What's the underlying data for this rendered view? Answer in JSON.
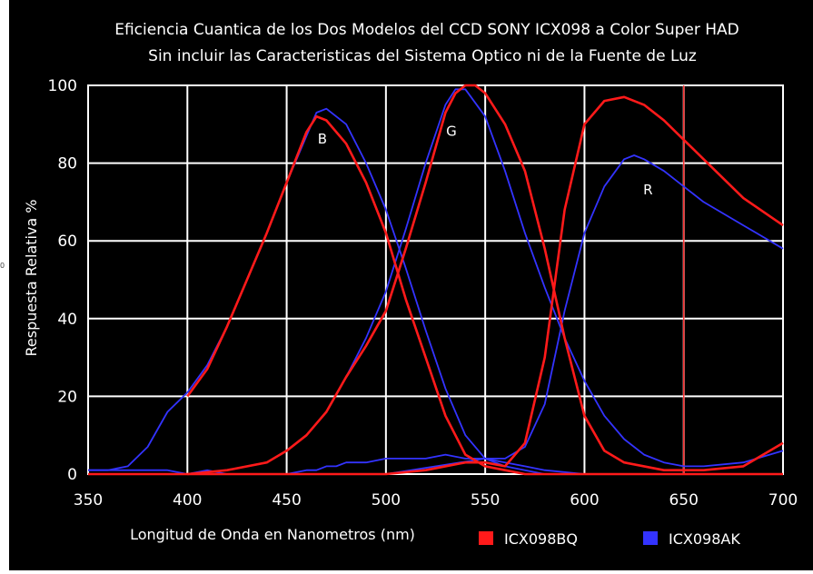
{
  "stray_mark": "0",
  "chart_data": {
    "type": "line",
    "title": "Eficiencia Cuantica de los Dos Modelos del CCD SONY ICX098 a Color Super HAD",
    "subtitle": "Sin incluir las Caracteristicas del Sistema Optico ni de la Fuente de Luz",
    "xlabel": "Longitud de Onda en Nanometros (nm)",
    "ylabel": "Respuesta Relativa %",
    "xlim": [
      350,
      700
    ],
    "ylim": [
      0,
      100
    ],
    "xticks": [
      350,
      400,
      450,
      500,
      550,
      600,
      650,
      700
    ],
    "yticks": [
      0,
      20,
      40,
      60,
      80,
      100
    ],
    "grid": true,
    "background": "#000000",
    "grid_color": "#ffffff",
    "legend_position": "bottom-right",
    "highlight_line": {
      "x": 650,
      "color": "#ff3030"
    },
    "annotations": [
      {
        "text": "B",
        "x": 468,
        "y": 85
      },
      {
        "text": "G",
        "x": 533,
        "y": 87
      },
      {
        "text": "R",
        "x": 632,
        "y": 72
      }
    ],
    "series": [
      {
        "name": "ICX098BQ",
        "color": "#ff1a1a",
        "channel": "B",
        "x": [
          400,
          410,
          420,
          430,
          440,
          450,
          460,
          465,
          470,
          480,
          490,
          500,
          510,
          520,
          530,
          540,
          550,
          560,
          570,
          580,
          590,
          600,
          620,
          650,
          700
        ],
        "y": [
          20,
          27,
          38,
          50,
          62,
          75,
          88,
          92,
          91,
          85,
          75,
          62,
          45,
          30,
          15,
          5,
          2,
          1,
          0,
          0,
          0,
          0,
          0,
          0,
          0
        ]
      },
      {
        "name": "ICX098BQ",
        "color": "#ff1a1a",
        "channel": "G",
        "x": [
          400,
          420,
          440,
          450,
          460,
          470,
          480,
          490,
          500,
          510,
          520,
          530,
          535,
          540,
          545,
          550,
          560,
          570,
          580,
          590,
          600,
          610,
          620,
          640,
          660,
          680,
          700
        ],
        "y": [
          0,
          1,
          3,
          6,
          10,
          16,
          25,
          33,
          42,
          58,
          75,
          93,
          98,
          100,
          100,
          98,
          90,
          78,
          58,
          35,
          15,
          6,
          3,
          1,
          1,
          2,
          8
        ]
      },
      {
        "name": "ICX098BQ",
        "color": "#ff1a1a",
        "channel": "R",
        "x": [
          350,
          400,
          450,
          500,
          520,
          540,
          550,
          560,
          570,
          580,
          590,
          600,
          610,
          620,
          630,
          640,
          650,
          660,
          680,
          700
        ],
        "y": [
          0,
          0,
          0,
          0,
          1,
          3,
          3,
          2,
          8,
          30,
          68,
          90,
          96,
          97,
          95,
          91,
          86,
          81,
          71,
          64
        ]
      },
      {
        "name": "ICX098AK",
        "color": "#3333ff",
        "channel": "B",
        "x": [
          350,
          360,
          370,
          380,
          390,
          400,
          410,
          420,
          430,
          440,
          450,
          460,
          465,
          470,
          475,
          480,
          490,
          500,
          510,
          520,
          530,
          540,
          550,
          560,
          570,
          580,
          600,
          650,
          700
        ],
        "y": [
          1,
          1,
          1,
          1,
          1,
          0,
          1,
          0,
          0,
          0,
          0,
          1,
          1,
          2,
          2,
          3,
          3,
          4,
          4,
          4,
          5,
          4,
          4,
          3,
          2,
          1,
          0,
          0,
          0
        ]
      },
      {
        "name": "ICX098AK",
        "color": "#3333ff",
        "channel": "B-main",
        "x": [
          350,
          360,
          370,
          380,
          390,
          400,
          410,
          420,
          430,
          440,
          450,
          460,
          465,
          470,
          480,
          490,
          500,
          510,
          520,
          530,
          540,
          550,
          560,
          570,
          580,
          600,
          620,
          650,
          700
        ],
        "y": [
          1,
          1,
          2,
          7,
          16,
          21,
          28,
          38,
          50,
          62,
          75,
          87,
          93,
          94,
          90,
          80,
          68,
          53,
          37,
          22,
          10,
          4,
          2,
          1,
          0,
          0,
          0,
          0,
          0
        ]
      },
      {
        "name": "ICX098AK",
        "color": "#3333ff",
        "channel": "G",
        "x": [
          400,
          420,
          440,
          450,
          460,
          470,
          480,
          490,
          500,
          510,
          520,
          530,
          535,
          540,
          550,
          560,
          570,
          580,
          590,
          600,
          610,
          620,
          630,
          640,
          650,
          660,
          680,
          700
        ],
        "y": [
          0,
          1,
          3,
          6,
          10,
          16,
          25,
          35,
          47,
          63,
          80,
          95,
          99,
          99,
          92,
          78,
          62,
          48,
          35,
          24,
          15,
          9,
          5,
          3,
          2,
          2,
          3,
          6
        ]
      },
      {
        "name": "ICX098AK",
        "color": "#3333ff",
        "channel": "R",
        "x": [
          350,
          400,
          450,
          500,
          550,
          560,
          570,
          580,
          590,
          600,
          610,
          620,
          625,
          630,
          640,
          650,
          660,
          680,
          690,
          700
        ],
        "y": [
          0,
          0,
          0,
          0,
          4,
          4,
          7,
          18,
          42,
          62,
          74,
          81,
          82,
          81,
          78,
          74,
          70,
          64,
          61,
          58
        ]
      }
    ],
    "legend": [
      {
        "label": "ICX098BQ",
        "color": "#ff1a1a"
      },
      {
        "label": "ICX098AK",
        "color": "#3333ff"
      }
    ]
  }
}
